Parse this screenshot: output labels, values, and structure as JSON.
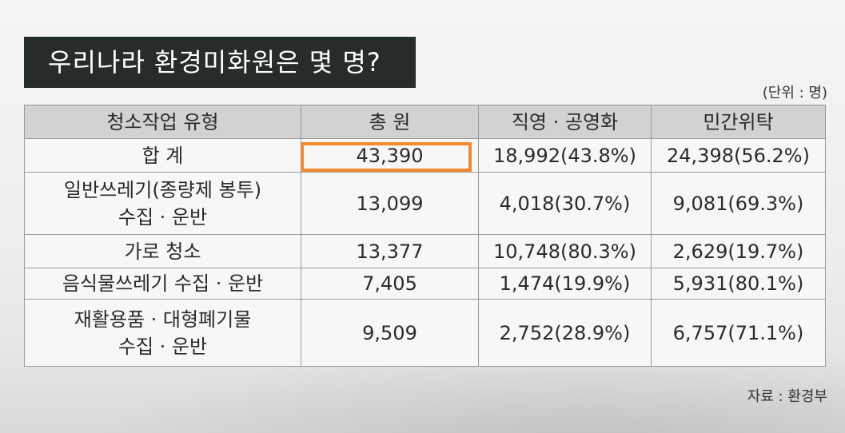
{
  "title": "우리나라 환경미화원은 몇 명?",
  "unit_note": "(단위 : 명)",
  "source_note": "자료 : 환경부",
  "table": {
    "headers": [
      "청소작업 유형",
      "총 원",
      "직영 · 공영화",
      "민간위탁"
    ],
    "rows": [
      {
        "type_lines": [
          "합 계"
        ],
        "total": "43,390",
        "direct": "18,992(43.8%)",
        "private": "24,398(56.2%)",
        "highlighted": true
      },
      {
        "type_lines": [
          "일반쓰레기(종량제 봉투)",
          "수집 · 운반"
        ],
        "total": "13,099",
        "direct": "4,018(30.7%)",
        "private": "9,081(69.3%)"
      },
      {
        "type_lines": [
          "가로 청소"
        ],
        "total": "13,377",
        "direct": "10,748(80.3%)",
        "private": "2,629(19.7%)"
      },
      {
        "type_lines": [
          "음식물쓰레기 수집 · 운반"
        ],
        "total": "7,405",
        "direct": "1,474(19.9%)",
        "private": "5,931(80.1%)"
      },
      {
        "type_lines": [
          "재활용품 · 대형폐기물",
          "수집 · 운반"
        ],
        "total": "9,509",
        "direct": "2,752(28.9%)",
        "private": "6,757(71.1%)"
      }
    ]
  },
  "colors": {
    "banner_bg": "#262b2b",
    "header_bg": "#d2d2d2",
    "highlight": "#f28a2c"
  }
}
